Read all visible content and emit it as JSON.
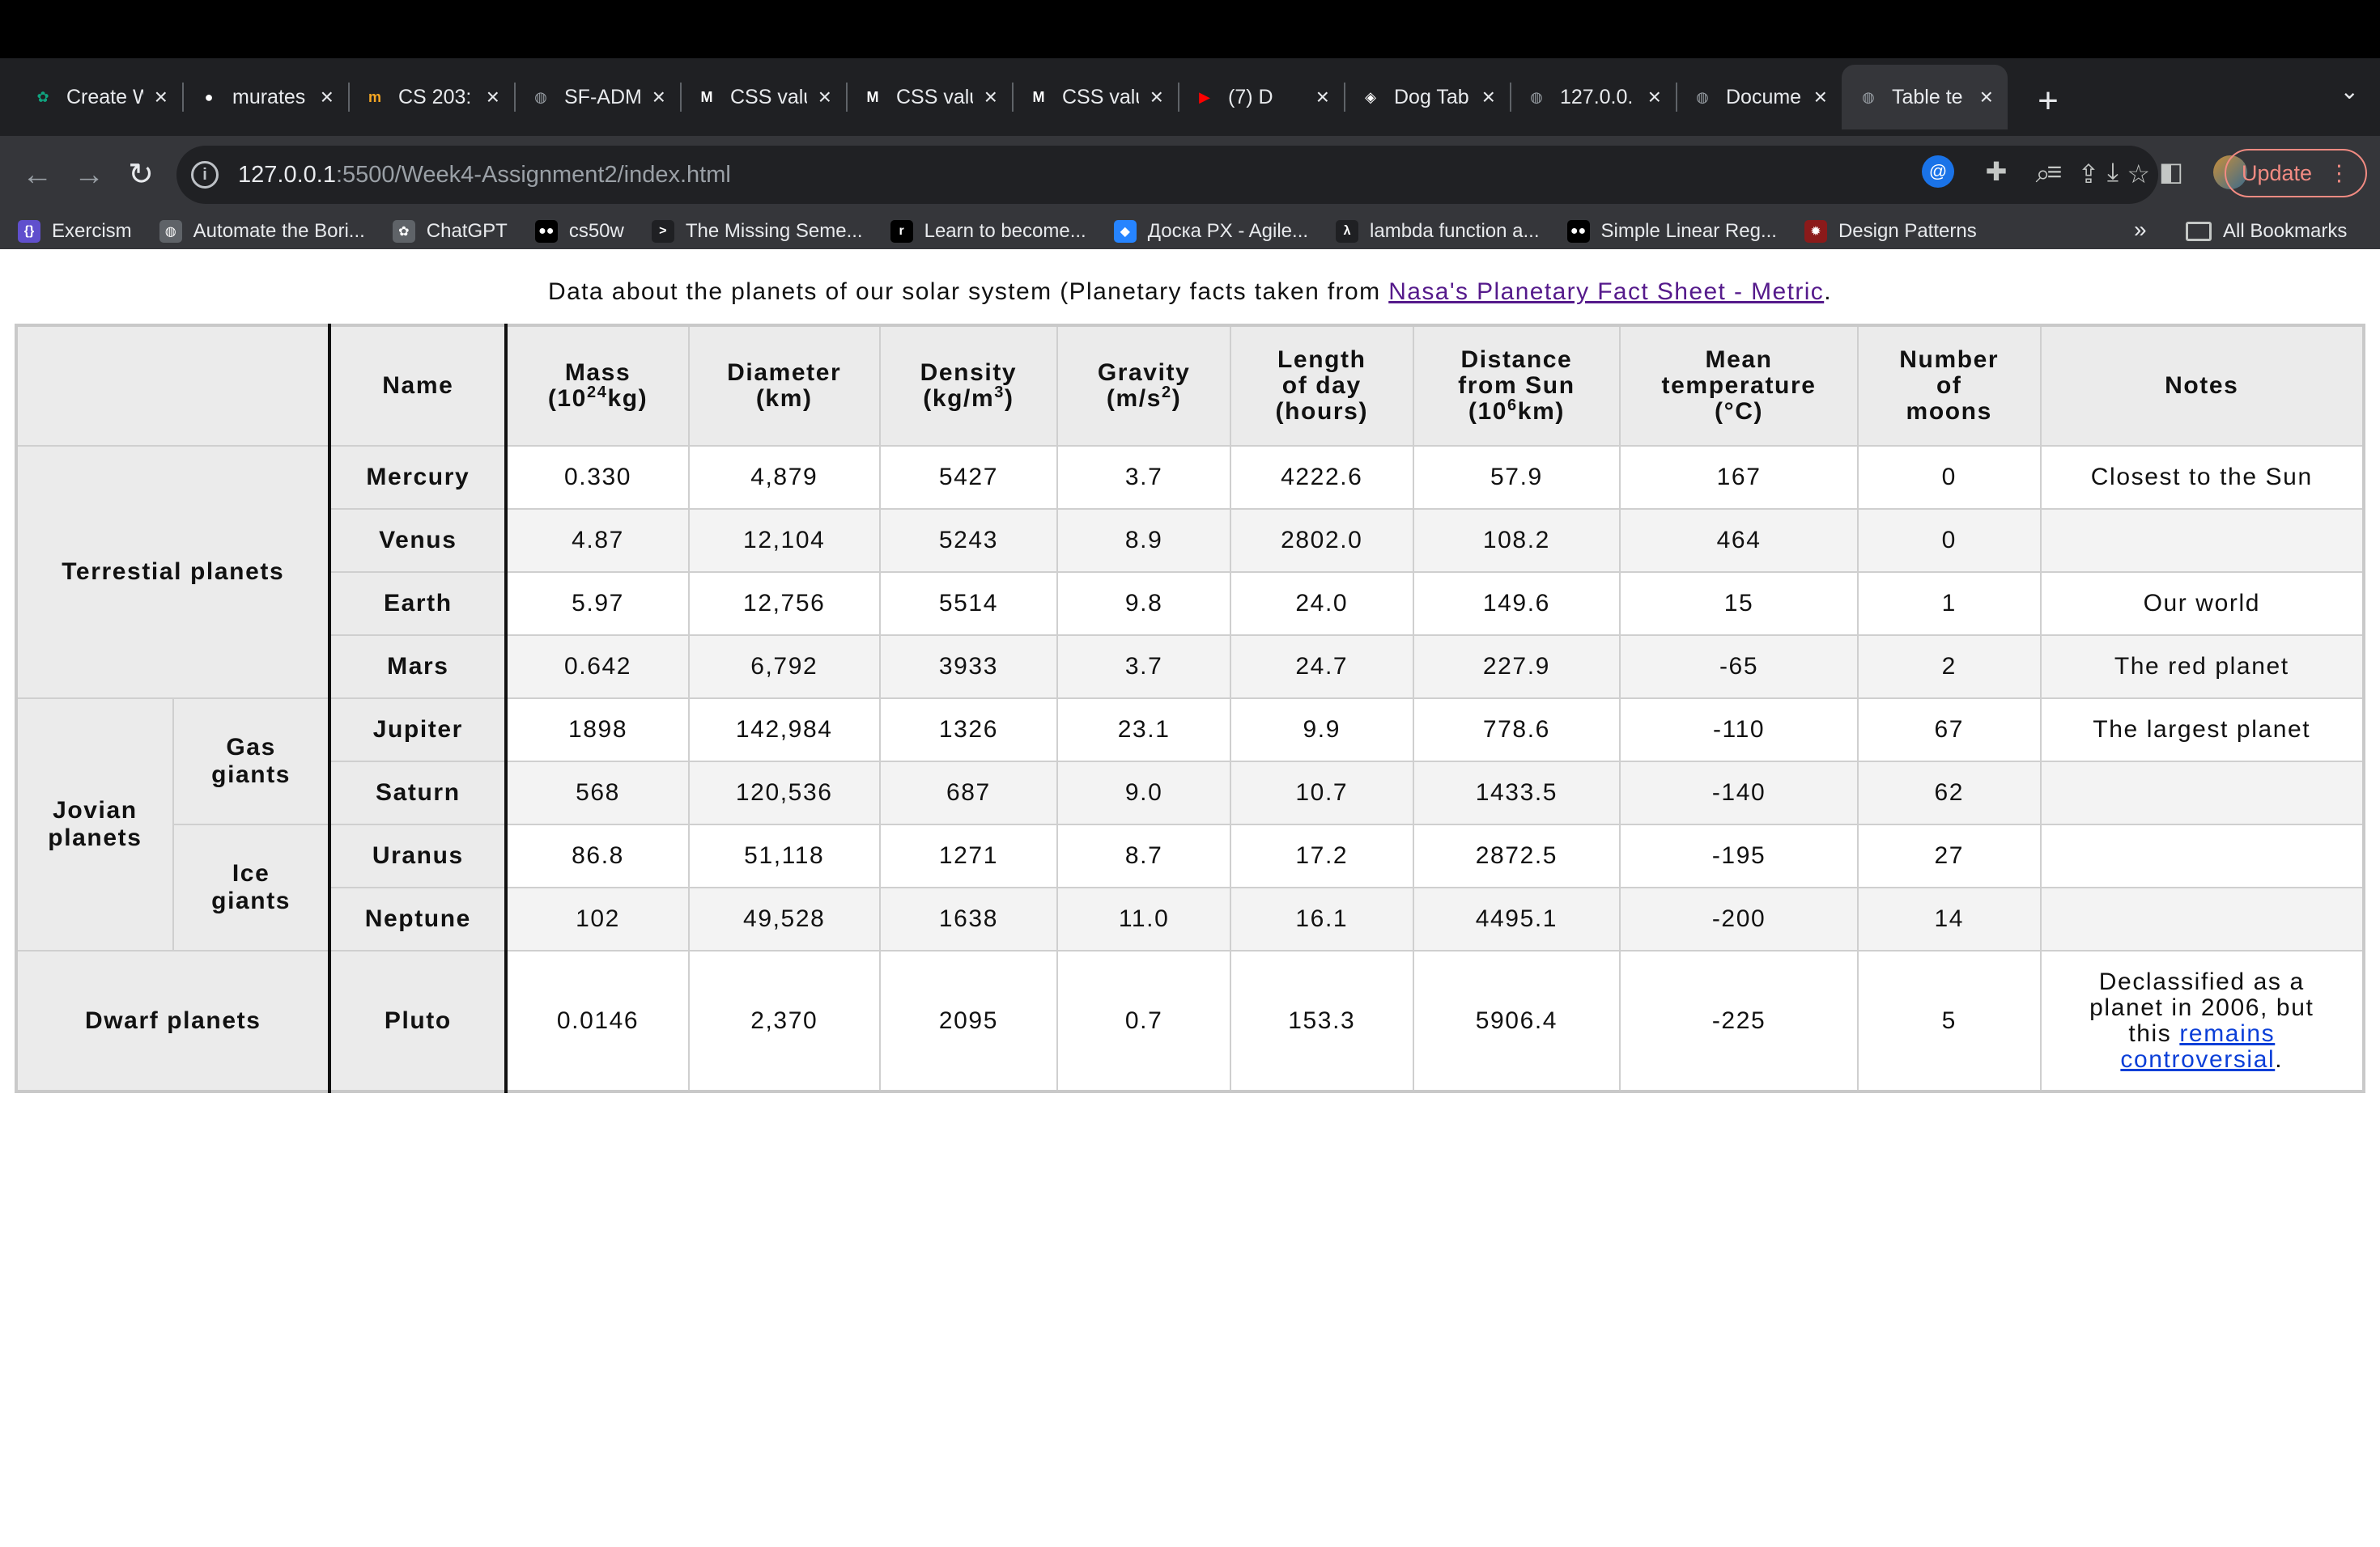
{
  "browser": {
    "tabs": [
      {
        "title": "Create W",
        "icon": "chatgpt-icon"
      },
      {
        "title": "murates",
        "icon": "github-icon"
      },
      {
        "title": "CS 203:",
        "icon": "course-icon"
      },
      {
        "title": "SF-ADM",
        "icon": "globe-icon"
      },
      {
        "title": "CSS valu",
        "icon": "mdn-icon"
      },
      {
        "title": "CSS valu",
        "icon": "mdn-icon"
      },
      {
        "title": "CSS valu",
        "icon": "mdn-icon"
      },
      {
        "title": "(7) D",
        "icon": "youtube-icon"
      },
      {
        "title": "Dog Tab",
        "icon": "codepen-icon"
      },
      {
        "title": "127.0.0.",
        "icon": "globe-icon"
      },
      {
        "title": "Docume",
        "icon": "globe-icon"
      },
      {
        "title": "Table te",
        "icon": "globe-icon"
      }
    ],
    "active_tab_index": 11,
    "url_host": "127.0.0.1",
    "url_path": ":5500/Week4-Assignment2/index.html",
    "update_label": "Update",
    "bookmarks": [
      {
        "label": "Exercism",
        "icon": "exercism-icon",
        "color": "#604fcd"
      },
      {
        "label": "Automate the Bori...",
        "icon": "globe-icon",
        "color": "#5f6368"
      },
      {
        "label": "ChatGPT",
        "icon": "chatgpt-icon",
        "color": "#5f6368"
      },
      {
        "label": "cs50w",
        "icon": "medium-icon",
        "color": "#000000"
      },
      {
        "label": "The Missing Seme...",
        "icon": "terminal-icon",
        "color": "#1f2023"
      },
      {
        "label": "Learn to become...",
        "icon": "roadmap-icon",
        "color": "#000000"
      },
      {
        "label": "Доска PX - Agile...",
        "icon": "jira-icon",
        "color": "#2684ff"
      },
      {
        "label": "lambda function a...",
        "icon": "lambda-icon",
        "color": "#1f2023"
      },
      {
        "label": "Simple Linear Reg...",
        "icon": "medium-icon",
        "color": "#000000"
      },
      {
        "label": "Design Patterns",
        "icon": "refactoring-icon",
        "color": "#8b1a1a"
      }
    ],
    "bookmarks_more": "»",
    "all_bookmarks_label": "All Bookmarks"
  },
  "page": {
    "caption_text": "Data about the planets of our solar system (Planetary facts taken from ",
    "caption_link": "Nasa's Planetary Fact Sheet - Metric",
    "caption_end": ".",
    "headers": {
      "name": "Name",
      "mass_a": "Mass",
      "mass_b": "(10",
      "mass_sup": "24",
      "mass_c": "kg)",
      "diameter_a": "Diameter",
      "diameter_b": "(km)",
      "density_a": "Density",
      "density_b": "(kg/m",
      "density_sup": "3",
      "density_c": ")",
      "gravity_a": "Gravity",
      "gravity_b": "(m/s",
      "gravity_sup": "2",
      "gravity_c": ")",
      "day_a": "Length",
      "day_b": "of day",
      "day_c": "(hours)",
      "dist_a": "Distance",
      "dist_b": "from Sun",
      "dist_c": "(10",
      "dist_sup": "6",
      "dist_d": "km)",
      "temp_a": "Mean",
      "temp_b": "temperature",
      "temp_c": "(°C)",
      "moons_a": "Number",
      "moons_b": "of",
      "moons_c": "moons",
      "notes": "Notes"
    },
    "groups": {
      "terrestrial": "Terrestial planets",
      "jovian_a": "Jovian",
      "jovian_b": "planets",
      "gas_a": "Gas",
      "gas_b": "giants",
      "ice_a": "Ice",
      "ice_b": "giants",
      "dwarf": "Dwarf planets"
    },
    "rows": [
      {
        "name": "Mercury",
        "mass": "0.330",
        "diameter": "4,879",
        "density": "5427",
        "gravity": "3.7",
        "day": "4222.6",
        "distance": "57.9",
        "temp": "167",
        "moons": "0",
        "notes": "Closest to the Sun"
      },
      {
        "name": "Venus",
        "mass": "4.87",
        "diameter": "12,104",
        "density": "5243",
        "gravity": "8.9",
        "day": "2802.0",
        "distance": "108.2",
        "temp": "464",
        "moons": "0",
        "notes": ""
      },
      {
        "name": "Earth",
        "mass": "5.97",
        "diameter": "12,756",
        "density": "5514",
        "gravity": "9.8",
        "day": "24.0",
        "distance": "149.6",
        "temp": "15",
        "moons": "1",
        "notes": "Our world"
      },
      {
        "name": "Mars",
        "mass": "0.642",
        "diameter": "6,792",
        "density": "3933",
        "gravity": "3.7",
        "day": "24.7",
        "distance": "227.9",
        "temp": "-65",
        "moons": "2",
        "notes": "The red planet"
      },
      {
        "name": "Jupiter",
        "mass": "1898",
        "diameter": "142,984",
        "density": "1326",
        "gravity": "23.1",
        "day": "9.9",
        "distance": "778.6",
        "temp": "-110",
        "moons": "67",
        "notes": "The largest planet"
      },
      {
        "name": "Saturn",
        "mass": "568",
        "diameter": "120,536",
        "density": "687",
        "gravity": "9.0",
        "day": "10.7",
        "distance": "1433.5",
        "temp": "-140",
        "moons": "62",
        "notes": ""
      },
      {
        "name": "Uranus",
        "mass": "86.8",
        "diameter": "51,118",
        "density": "1271",
        "gravity": "8.7",
        "day": "17.2",
        "distance": "2872.5",
        "temp": "-195",
        "moons": "27",
        "notes": ""
      },
      {
        "name": "Neptune",
        "mass": "102",
        "diameter": "49,528",
        "density": "1638",
        "gravity": "11.0",
        "day": "16.1",
        "distance": "4495.1",
        "temp": "-200",
        "moons": "14",
        "notes": ""
      },
      {
        "name": "Pluto",
        "mass": "0.0146",
        "diameter": "2,370",
        "density": "2095",
        "gravity": "0.7",
        "day": "153.3",
        "distance": "5906.4",
        "temp": "-225",
        "moons": "5",
        "notes_a": "Declassified as a",
        "notes_b": "planet in 2006, but",
        "notes_c": "this ",
        "notes_link_a": "remains",
        "notes_link_b": "controversial",
        "notes_end": "."
      }
    ]
  }
}
